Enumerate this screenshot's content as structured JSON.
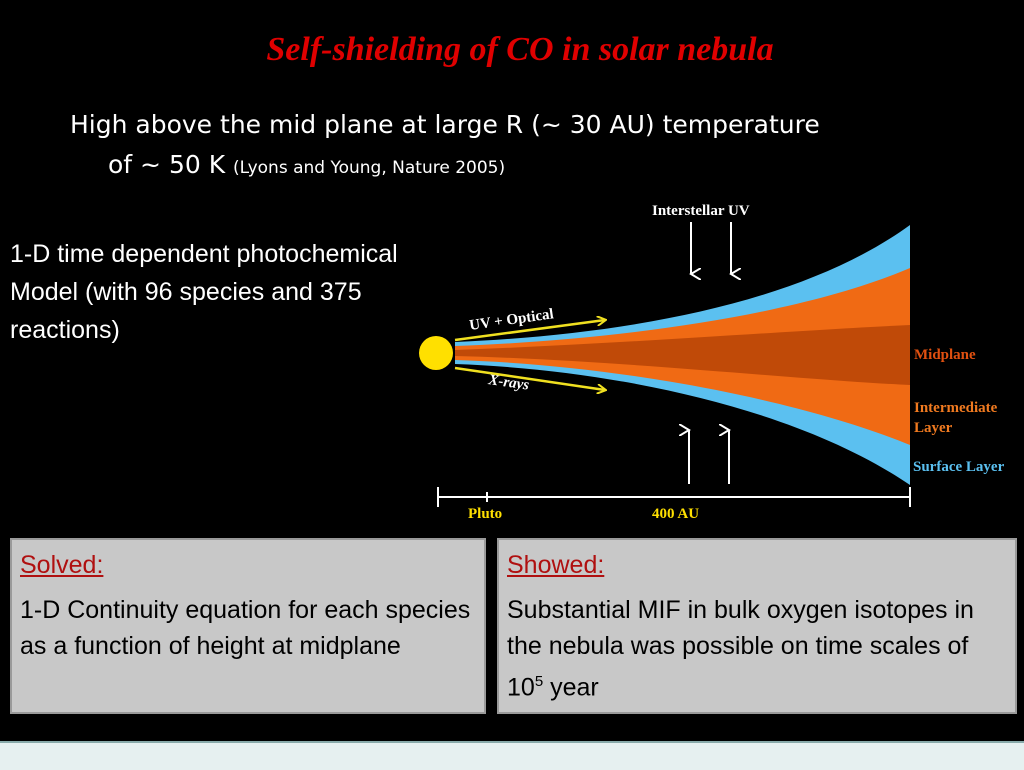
{
  "title": "Self-shielding of CO in solar nebula",
  "subtitle": {
    "main": "High above the mid plane at large R (~ 30 AU) temperature",
    "line2": "of ~ 50 K",
    "ref": "(Lyons and Young, Nature 2005)"
  },
  "model_text": "1-D time dependent photochemical Model (with 96 species and 375 reactions)",
  "diagram": {
    "interstellar_uv": "Interstellar UV",
    "uv_optical": "UV + Optical",
    "xrays": "X-rays",
    "midplane": "Midplane",
    "intermediate_1": "Intermediate",
    "intermediate_2": "Layer",
    "surface": "Surface Layer",
    "pluto": "Pluto",
    "au": "400 AU"
  },
  "colors": {
    "surface": "#5bc0f0",
    "intermediate": "#f06a14",
    "midplane": "#c04a08",
    "sun": "#ffe000",
    "arrow": "#f0e020",
    "title": "#e00000"
  },
  "solved": {
    "head": "Solved:",
    "body": "1-D Continuity equation for each species as a function of height at midplane"
  },
  "showed": {
    "head": "Showed:",
    "body_pre": "Substantial MIF in bulk oxygen isotopes in the nebula was possible on time scales of 10",
    "sup": "5",
    "body_post": " year"
  }
}
